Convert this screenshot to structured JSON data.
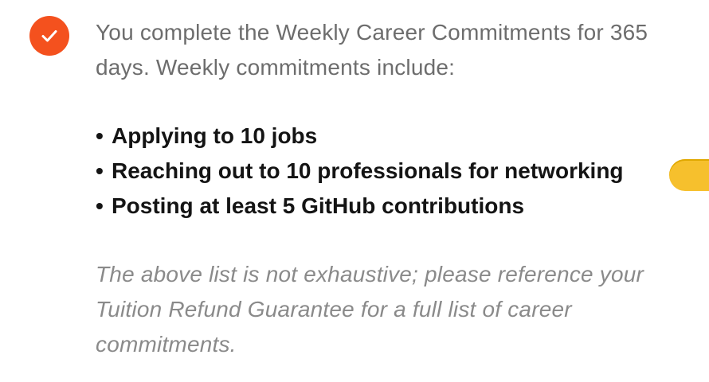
{
  "status": {
    "icon": "checkmark-icon",
    "color": "#f4511e"
  },
  "intro_text": "You complete the Weekly Career Commitments for 365 days. Weekly commitments include:",
  "commitments": [
    {
      "bullet": "•",
      "text": "Applying to 10 jobs"
    },
    {
      "bullet": "•",
      "text": "Reaching out to 10 professionals for networking"
    },
    {
      "bullet": "•",
      "text": "Posting at least 5 GitHub contributions"
    }
  ],
  "note_text": "The above list is not exhaustive; please reference your Tuition Refund Guarantee for a full list of career commitments.",
  "side_control": {
    "color": "#f6c02d"
  }
}
